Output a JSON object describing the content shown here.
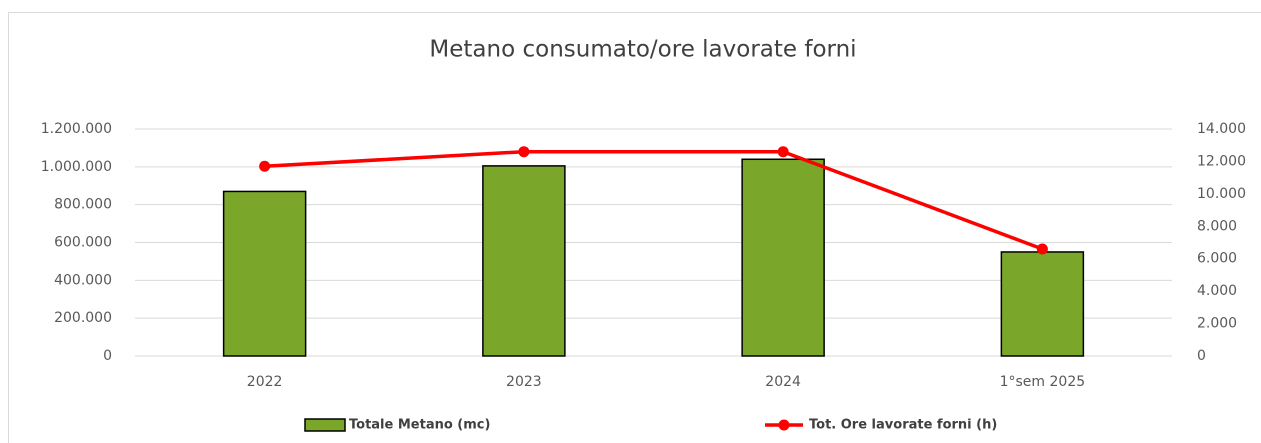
{
  "chart_data": {
    "type": "bar",
    "title": "Metano consumato/ore lavorate forni",
    "categories": [
      "2022",
      "2023",
      "2024",
      "1°sem 2025"
    ],
    "series": [
      {
        "name": "Totale Metano (mc)",
        "type": "bar",
        "color": "#7aa62a",
        "values": [
          870000,
          1005000,
          1040000,
          550000
        ]
      },
      {
        "name": "Tot. Ore lavorate forni (h)",
        "type": "line",
        "axis": "y2",
        "color": "#ff0000",
        "values": [
          11700,
          12600,
          12600,
          6600
        ]
      }
    ],
    "ylim": [
      0,
      1200000
    ],
    "yticks": [
      0,
      {
        "value": 200000,
        "label": "200.000"
      },
      {
        "value": 400000,
        "label": "400.000"
      },
      {
        "value": 600000,
        "label": "600.000"
      },
      {
        "value": 800000,
        "label": "800.000"
      },
      {
        "value": 1000000,
        "label": "1.000.000"
      },
      {
        "value": 1200000,
        "label": "1.200.000"
      }
    ],
    "y2lim": [
      0,
      14000
    ],
    "y2ticks": [
      0,
      {
        "value": 2000,
        "label": "2.000"
      },
      {
        "value": 4000,
        "label": "4.000"
      },
      {
        "value": 6000,
        "label": "6.000"
      },
      {
        "value": 8000,
        "label": "8.000"
      },
      {
        "value": 10000,
        "label": "10.000"
      },
      {
        "value": 12000,
        "label": "12.000"
      },
      {
        "value": 14000,
        "label": "14.000"
      }
    ],
    "grid": true,
    "legend": "bottom"
  }
}
